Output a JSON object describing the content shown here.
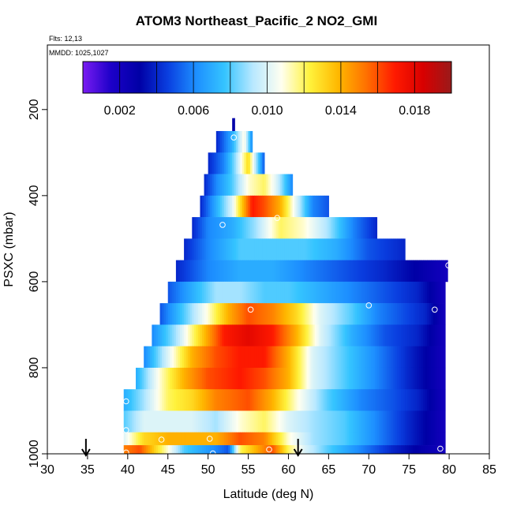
{
  "chart_data": {
    "type": "heatmap",
    "title": "ATOM3 Northeast_Pacific_2 NO2_GMI",
    "subtitle_flights": "Flts: 12,13",
    "subtitle_dates": "MMDD: 1025,1027",
    "xlabel": "Latitude (deg N)",
    "ylabel": "PSXC (mbar)",
    "xlim": [
      30,
      85
    ],
    "ylim": [
      1000,
      50
    ],
    "y_reversed": true,
    "x_ticks": [
      30,
      35,
      40,
      45,
      50,
      55,
      60,
      65,
      70,
      75,
      80,
      85
    ],
    "y_ticks": [
      200,
      400,
      600,
      800,
      1000
    ],
    "colorbar": {
      "range": [
        0.0,
        0.02
      ],
      "ticks": [
        0.002,
        0.006,
        0.01,
        0.014,
        0.018
      ],
      "tick_labels": [
        "0.002",
        "0.006",
        "0.010",
        "0.014",
        "0.018"
      ],
      "stops": [
        "#7a1cf2",
        "#1c00c8",
        "#0000a6",
        "#0a3fe0",
        "#1d8fff",
        "#35c4ff",
        "#b8e8ff",
        "#fffff0",
        "#fff23c",
        "#ffb800",
        "#ff7000",
        "#ff1a00",
        "#d80000",
        "#9a1a1a"
      ]
    },
    "flight_arrows_lat": [
      34.8,
      61.2
    ],
    "rows": [
      {
        "p_top": 220,
        "p_bot": 250,
        "lat0": 53.0,
        "lat1": 53.3,
        "anchors": [
          [
            53.0,
            0.003
          ]
        ]
      },
      {
        "p_top": 250,
        "p_bot": 300,
        "lat0": 51.0,
        "lat1": 55.5,
        "anchors": [
          [
            51,
            0.004
          ],
          [
            53,
            0.007
          ],
          [
            54.5,
            0.011
          ],
          [
            55.5,
            0.006
          ]
        ]
      },
      {
        "p_top": 300,
        "p_bot": 350,
        "lat0": 50.0,
        "lat1": 57.0,
        "anchors": [
          [
            50,
            0.004
          ],
          [
            52,
            0.006
          ],
          [
            53.5,
            0.009
          ],
          [
            55,
            0.013
          ],
          [
            56,
            0.009
          ],
          [
            57,
            0.005
          ]
        ]
      },
      {
        "p_top": 350,
        "p_bot": 400,
        "lat0": 49.5,
        "lat1": 60.5,
        "anchors": [
          [
            49.5,
            0.004
          ],
          [
            51,
            0.006
          ],
          [
            53,
            0.008
          ],
          [
            55,
            0.011
          ],
          [
            57,
            0.012
          ],
          [
            58.5,
            0.01
          ],
          [
            60.5,
            0.006
          ]
        ]
      },
      {
        "p_top": 400,
        "p_bot": 450,
        "lat0": 49.0,
        "lat1": 65.0,
        "anchors": [
          [
            49,
            0.004
          ],
          [
            51,
            0.007
          ],
          [
            53,
            0.01
          ],
          [
            55.5,
            0.017
          ],
          [
            57,
            0.016
          ],
          [
            59,
            0.014
          ],
          [
            61,
            0.01
          ],
          [
            63,
            0.006
          ],
          [
            65,
            0.005
          ]
        ]
      },
      {
        "p_top": 450,
        "p_bot": 500,
        "lat0": 48.0,
        "lat1": 71.0,
        "anchors": [
          [
            48,
            0.004
          ],
          [
            50,
            0.006
          ],
          [
            53,
            0.007
          ],
          [
            56,
            0.009
          ],
          [
            59,
            0.012
          ],
          [
            62,
            0.011
          ],
          [
            65,
            0.009
          ],
          [
            68,
            0.006
          ],
          [
            71,
            0.004
          ]
        ]
      },
      {
        "p_top": 500,
        "p_bot": 550,
        "lat0": 47.0,
        "lat1": 74.5,
        "anchors": [
          [
            47,
            0.004
          ],
          [
            50,
            0.006
          ],
          [
            54,
            0.008
          ],
          [
            58,
            0.008
          ],
          [
            62,
            0.008
          ],
          [
            66,
            0.007
          ],
          [
            70,
            0.005
          ],
          [
            74.5,
            0.004
          ]
        ]
      },
      {
        "p_top": 550,
        "p_bot": 600,
        "lat0": 46.0,
        "lat1": 79.8,
        "anchors": [
          [
            46,
            0.004
          ],
          [
            50,
            0.006
          ],
          [
            54,
            0.007
          ],
          [
            58,
            0.007
          ],
          [
            62,
            0.006
          ],
          [
            67,
            0.005
          ],
          [
            72,
            0.004
          ],
          [
            76,
            0.003
          ],
          [
            79.8,
            0.002
          ]
        ]
      },
      {
        "p_top": 600,
        "p_bot": 650,
        "lat0": 45.0,
        "lat1": 79.5,
        "anchors": [
          [
            45,
            0.005
          ],
          [
            48,
            0.007
          ],
          [
            51,
            0.009
          ],
          [
            54,
            0.009
          ],
          [
            57,
            0.008
          ],
          [
            60,
            0.008
          ],
          [
            64,
            0.007
          ],
          [
            68,
            0.006
          ],
          [
            72,
            0.005
          ],
          [
            76,
            0.004
          ],
          [
            79.5,
            0.002
          ]
        ]
      },
      {
        "p_top": 650,
        "p_bot": 700,
        "lat0": 44.0,
        "lat1": 79.5,
        "anchors": [
          [
            44,
            0.005
          ],
          [
            47,
            0.008
          ],
          [
            50,
            0.011
          ],
          [
            52.5,
            0.014
          ],
          [
            55,
            0.016
          ],
          [
            58,
            0.015
          ],
          [
            61,
            0.013
          ],
          [
            64,
            0.01
          ],
          [
            68,
            0.008
          ],
          [
            71,
            0.006
          ],
          [
            74,
            0.005
          ],
          [
            77,
            0.004
          ],
          [
            79.5,
            0.002
          ]
        ]
      },
      {
        "p_top": 700,
        "p_bot": 750,
        "lat0": 43.0,
        "lat1": 79.5,
        "anchors": [
          [
            43,
            0.006
          ],
          [
            46,
            0.009
          ],
          [
            49,
            0.013
          ],
          [
            52,
            0.017
          ],
          [
            55,
            0.018
          ],
          [
            58,
            0.017
          ],
          [
            61,
            0.014
          ],
          [
            64,
            0.01
          ],
          [
            68,
            0.007
          ],
          [
            72,
            0.005
          ],
          [
            76,
            0.004
          ],
          [
            79.5,
            0.002
          ]
        ]
      },
      {
        "p_top": 750,
        "p_bot": 800,
        "lat0": 42.0,
        "lat1": 79.5,
        "anchors": [
          [
            42,
            0.006
          ],
          [
            45,
            0.01
          ],
          [
            48,
            0.014
          ],
          [
            51,
            0.016
          ],
          [
            54,
            0.017
          ],
          [
            57,
            0.017
          ],
          [
            60,
            0.014
          ],
          [
            63,
            0.01
          ],
          [
            67,
            0.008
          ],
          [
            71,
            0.006
          ],
          [
            75,
            0.004
          ],
          [
            79.5,
            0.002
          ]
        ]
      },
      {
        "p_top": 800,
        "p_bot": 850,
        "lat0": 41.0,
        "lat1": 79.5,
        "anchors": [
          [
            41,
            0.007
          ],
          [
            44,
            0.011
          ],
          [
            47,
            0.014
          ],
          [
            50,
            0.016
          ],
          [
            54,
            0.017
          ],
          [
            57,
            0.016
          ],
          [
            60,
            0.014
          ],
          [
            63,
            0.01
          ],
          [
            67,
            0.008
          ],
          [
            71,
            0.006
          ],
          [
            75,
            0.004
          ],
          [
            79.5,
            0.002
          ]
        ]
      },
      {
        "p_top": 850,
        "p_bot": 900,
        "lat0": 39.5,
        "lat1": 79.5,
        "anchors": [
          [
            39.5,
            0.007
          ],
          [
            42,
            0.009
          ],
          [
            45,
            0.012
          ],
          [
            48,
            0.013
          ],
          [
            51,
            0.015
          ],
          [
            55,
            0.016
          ],
          [
            58,
            0.014
          ],
          [
            61,
            0.011
          ],
          [
            65,
            0.008
          ],
          [
            69,
            0.006
          ],
          [
            73,
            0.005
          ],
          [
            76,
            0.004
          ],
          [
            79.5,
            0.002
          ]
        ]
      },
      {
        "p_top": 900,
        "p_bot": 950,
        "lat0": 39.5,
        "lat1": 79.5,
        "anchors": [
          [
            39.5,
            0.008
          ],
          [
            42,
            0.01
          ],
          [
            45,
            0.01
          ],
          [
            48,
            0.01
          ],
          [
            51,
            0.009
          ],
          [
            54,
            0.011
          ],
          [
            57,
            0.012
          ],
          [
            60,
            0.01
          ],
          [
            63,
            0.009
          ],
          [
            67,
            0.008
          ],
          [
            71,
            0.006
          ],
          [
            75,
            0.004
          ],
          [
            79.5,
            0.002
          ]
        ]
      },
      {
        "p_top": 950,
        "p_bot": 980,
        "lat0": 39.5,
        "lat1": 79.5,
        "anchors": [
          [
            39.5,
            0.01
          ],
          [
            42,
            0.013
          ],
          [
            45,
            0.014
          ],
          [
            48,
            0.014
          ],
          [
            51,
            0.014
          ],
          [
            54,
            0.016
          ],
          [
            57,
            0.015
          ],
          [
            60,
            0.011
          ],
          [
            63,
            0.009
          ],
          [
            67,
            0.008
          ],
          [
            71,
            0.006
          ],
          [
            75,
            0.004
          ],
          [
            79.5,
            0.002
          ]
        ]
      },
      {
        "p_top": 980,
        "p_bot": 1015,
        "lat0": 39.5,
        "lat1": 79.5,
        "anchors": [
          [
            39.5,
            0.015
          ],
          [
            41.5,
            0.016
          ],
          [
            43.5,
            0.013
          ],
          [
            45,
            0.011
          ],
          [
            47,
            0.008
          ],
          [
            49,
            0.007
          ],
          [
            51,
            0.006
          ],
          [
            52.5,
            0.005
          ],
          [
            54,
            0.012
          ],
          [
            56,
            0.014
          ],
          [
            58,
            0.016
          ],
          [
            60,
            0.012
          ],
          [
            62,
            0.01
          ],
          [
            65,
            0.008
          ],
          [
            69,
            0.006
          ],
          [
            73,
            0.004
          ],
          [
            76,
            0.003
          ],
          [
            79.5,
            0.002
          ]
        ]
      }
    ],
    "markers": [
      {
        "lat": 53.2,
        "p": 265
      },
      {
        "lat": 51.8,
        "p": 468
      },
      {
        "lat": 58.6,
        "p": 452
      },
      {
        "lat": 55.3,
        "p": 665
      },
      {
        "lat": 70.0,
        "p": 655
      },
      {
        "lat": 78.2,
        "p": 665
      },
      {
        "lat": 79.9,
        "p": 562
      },
      {
        "lat": 39.8,
        "p": 878
      },
      {
        "lat": 39.8,
        "p": 945
      },
      {
        "lat": 44.2,
        "p": 967
      },
      {
        "lat": 50.2,
        "p": 965
      },
      {
        "lat": 39.8,
        "p": 997
      },
      {
        "lat": 50.6,
        "p": 999
      },
      {
        "lat": 57.6,
        "p": 990
      },
      {
        "lat": 78.9,
        "p": 988
      }
    ]
  }
}
